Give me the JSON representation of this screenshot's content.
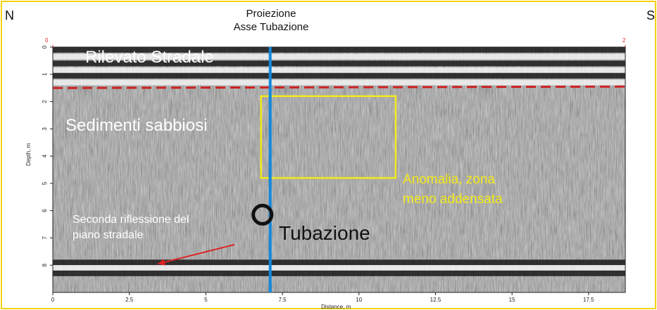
{
  "chart_data": {
    "type": "radargram",
    "title_top": [
      "Proiezione",
      "Asse Tubazione"
    ],
    "corner_left": "N",
    "corner_right": "S",
    "xlabel": "Distance, m",
    "ylabel": "Depth, m",
    "xlim": [
      0,
      18.7
    ],
    "ylim": [
      0,
      9
    ],
    "x_ticks": [
      0,
      2.5,
      5,
      7.5,
      10,
      12.5,
      15,
      17.5
    ],
    "x_tick_labels": [
      "0",
      "2.5",
      "5",
      "7.5",
      "10",
      "12.5",
      "15",
      "17.5"
    ],
    "y_ticks": [
      0,
      1,
      2,
      3,
      4,
      5,
      6,
      7,
      8
    ],
    "y_tick_labels": [
      "0",
      "1",
      "2",
      "3",
      "4",
      "5",
      "6",
      "7",
      "8"
    ],
    "top_scale_labels": [
      "0",
      "2"
    ],
    "road_base_depth": 1.5,
    "pipe_axis_x": 7.1,
    "pipe": {
      "x": 7.1,
      "depth": 6.2
    },
    "anomaly_box": {
      "x0": 6.8,
      "x1": 11.2,
      "y0": 1.8,
      "y1": 4.8
    },
    "arrow": {
      "from": [
        5.8,
        7.4
      ],
      "to": [
        3.5,
        7.9
      ]
    },
    "bright_reflectors": [
      {
        "depth": 0.1,
        "type": "dark"
      },
      {
        "depth": 0.35,
        "type": "light"
      },
      {
        "depth": 0.6,
        "type": "dark"
      },
      {
        "depth": 0.85,
        "type": "light"
      },
      {
        "depth": 1.05,
        "type": "dark"
      },
      {
        "depth": 1.3,
        "type": "light"
      },
      {
        "depth": 7.9,
        "type": "dark"
      },
      {
        "depth": 8.1,
        "type": "light"
      },
      {
        "depth": 8.3,
        "type": "dark"
      }
    ],
    "annotations": {
      "road": "Rilevato Stradale",
      "sediments": "Sedimenti sabbiosi",
      "anomaly_line1": "Anomalia, zona",
      "anomaly_line2": "meno addensata",
      "second_reflection_line1": "Seconda riflessione del",
      "second_reflection_line2": "piano stradale",
      "pipe": "Tubazione"
    },
    "colors": {
      "frame": "#f5d10f",
      "pipe_axis": "#1188dd",
      "road_base": "#cc2222",
      "anomaly_box": "#f2ea1a",
      "pipe_circle": "#111111",
      "arrow": "#dd2222",
      "scale_labels_top": "#dd2222"
    }
  }
}
